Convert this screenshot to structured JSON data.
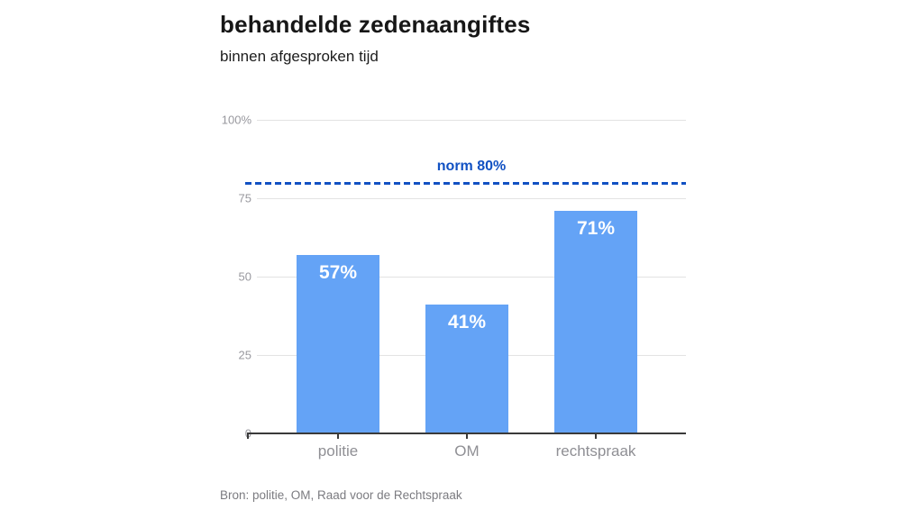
{
  "chart_data": {
    "type": "bar",
    "title": "behandelde zedenaangiftes",
    "subtitle": "binnen afgesproken tijd",
    "categories": [
      "politie",
      "OM",
      "rechtspraak"
    ],
    "values": [
      57,
      41,
      71
    ],
    "value_labels": [
      "57%",
      "41%",
      "71%"
    ],
    "xlabel": "",
    "ylabel": "",
    "ylim": [
      0,
      100
    ],
    "yticks": [
      0,
      25,
      50,
      75,
      100
    ],
    "ytick_labels": [
      "0",
      "25",
      "50",
      "75",
      "100%"
    ],
    "grid": true,
    "legend": false,
    "reference_line": {
      "value": 80,
      "label": "norm 80%",
      "style": "dashed"
    },
    "source": "Bron: politie, OM, Raad voor de Rechtspraak",
    "colors": {
      "bar": "#64a3f6",
      "bar_label": "#ffffff",
      "reference": "#1151c3",
      "grid": "#e3e3e3",
      "axis": "#3a3a3a",
      "ytick_label": "#98989e",
      "xtick_label": "#8f8f94",
      "title": "#171717",
      "source": "#7b7b80"
    }
  }
}
